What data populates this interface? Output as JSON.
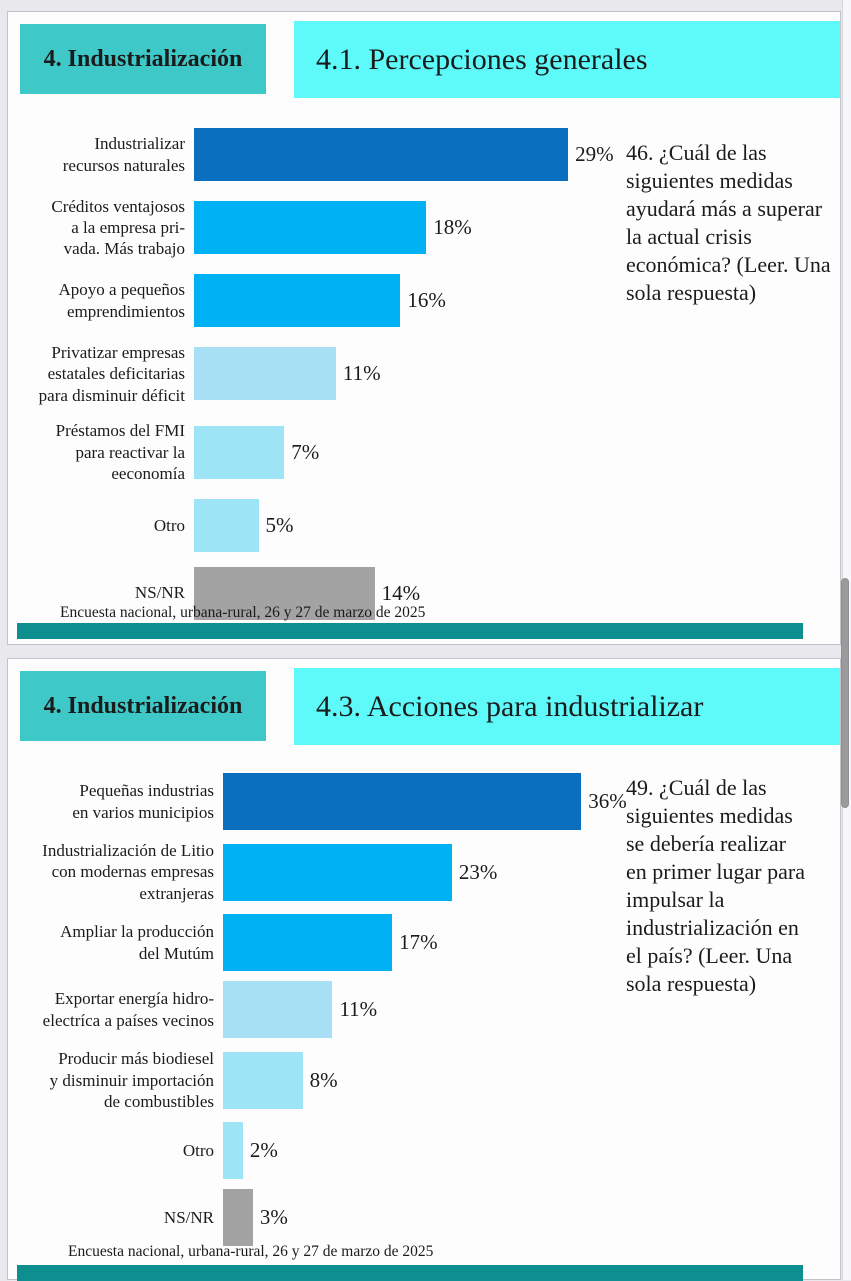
{
  "chart_data": [
    {
      "type": "bar",
      "orientation": "horizontal",
      "title": "4.1. Percepciones generales",
      "xlabel": "",
      "ylabel": "",
      "xlim": [
        0,
        32
      ],
      "grid": false,
      "legend": "none",
      "categories": [
        "Industrializar\nrecursos naturales",
        "Créditos ventajosos\na la empresa pri-\nvada. Más trabajo",
        "Apoyo a pequeños\nemprendimientos",
        "Privatizar empresas\nestatales deficitarias\npara disminuir déficit",
        "Préstamos del FMI\npara reactivar la\neeconomía",
        "Otro",
        "NS/NR"
      ],
      "values": [
        29,
        18,
        16,
        11,
        7,
        5,
        14
      ],
      "value_labels": [
        "29%",
        "18%",
        "16%",
        "11%",
        "7%",
        "5%",
        "14%"
      ],
      "bar_colors": [
        "#0a6fbf",
        "#00b1f3",
        "#00b1f3",
        "#a7e0f5",
        "#9ce4f6",
        "#9ce4f6",
        "#a3a3a3"
      ]
    },
    {
      "type": "bar",
      "orientation": "horizontal",
      "title": "4.3. Acciones para industrializar",
      "xlabel": "",
      "ylabel": "",
      "xlim": [
        0,
        40
      ],
      "grid": false,
      "legend": "none",
      "categories": [
        "Pequeñas industrias\nen varios municipios",
        "Industrialización de Litio\ncon modernas empresas\nextranjeras",
        "Ampliar la producción\ndel Mutúm",
        "Exportar energía hidro-\nelectríca a países vecinos",
        "Producir más biodiesel\ny disminuir importación\nde combustibles",
        "Otro",
        "NS/NR"
      ],
      "values": [
        36,
        23,
        17,
        11,
        8,
        2,
        3
      ],
      "value_labels": [
        "36%",
        "23%",
        "17%",
        "11%",
        "8%",
        "2%",
        "3%"
      ],
      "bar_colors": [
        "#0a6fbf",
        "#00b1f3",
        "#00b1f3",
        "#a7e0f5",
        "#9ce4f6",
        "#9ce4f6",
        "#a3a3a3"
      ]
    }
  ],
  "slides": [
    {
      "section_label": "4. Industrialización",
      "title": "4.1. Percepciones generales",
      "question": "46. ¿Cuál de las siguientes medidas ayudará más a superar la actual crisis económica? (Leer. Una sola respuesta)",
      "footer": "Encuesta nacional, urbana-rural, 26 y 27 de marzo de 2025"
    },
    {
      "section_label": "4. Industrialización",
      "title": "4.3. Acciones para industrializar",
      "question": "49. ¿Cuál de las siguientes medidas se debería realizar en primer lugar para impulsar la industrialización en el país? (Leer. Una sola respuesta)",
      "footer": "Encuesta nacional, urbana-rural, 26 y 27 de marzo de 2025"
    }
  ],
  "colors": {
    "section_box": "#3fc8c8",
    "title_box": "#5efafa",
    "accent_strip": "#0e8f8f",
    "dark_blue": "#0a6fbf",
    "mid_blue": "#00b1f3",
    "light_blue": "#a7e0f5",
    "pale_cyan": "#9ce4f6",
    "gray_bar": "#a3a3a3"
  }
}
